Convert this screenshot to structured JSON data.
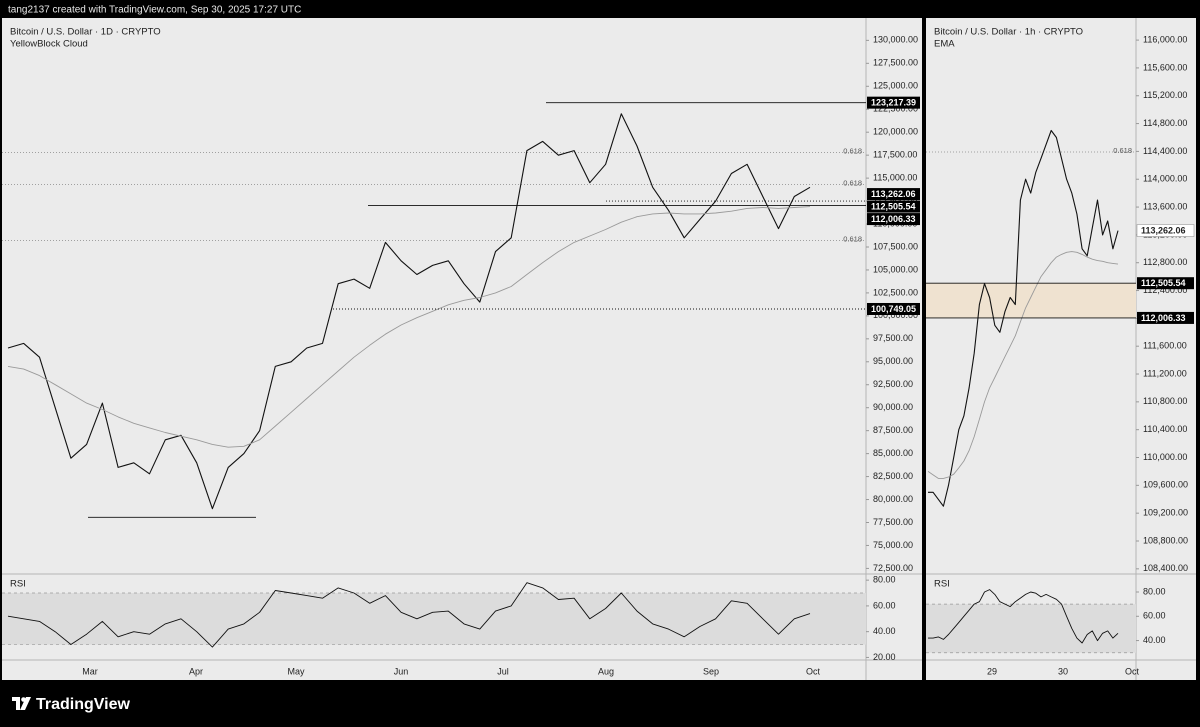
{
  "header": {
    "text": "tang2137 created with TradingView.com, Sep 30, 2025 17:27 UTC"
  },
  "footer": {
    "brand": "TradingView"
  },
  "chart_data": [
    {
      "type": "line",
      "title": "Bitcoin / U.S. Dollar · 1D · CRYPTO",
      "subtitle": "YellowBlock Cloud",
      "xtick_labels": [
        "Mar",
        "Apr",
        "May",
        "Jun",
        "Jul",
        "Aug",
        "Sep",
        "Oct"
      ],
      "ylim": [
        72000,
        132000
      ],
      "yticks": [
        {
          "value": 72500,
          "label": "72,500.00"
        },
        {
          "value": 75000,
          "label": "75,000.00"
        },
        {
          "value": 77500,
          "label": "77,500.00"
        },
        {
          "value": 80000,
          "label": "80,000.00"
        },
        {
          "value": 82500,
          "label": "82,500.00"
        },
        {
          "value": 85000,
          "label": "85,000.00"
        },
        {
          "value": 87500,
          "label": "87,500.00"
        },
        {
          "value": 90000,
          "label": "90,000.00"
        },
        {
          "value": 92500,
          "label": "92,500.00"
        },
        {
          "value": 95000,
          "label": "95,000.00"
        },
        {
          "value": 97500,
          "label": "97,500.00"
        },
        {
          "value": 100000,
          "label": "100,000.00"
        },
        {
          "value": 102500,
          "label": "102,500.00"
        },
        {
          "value": 105000,
          "label": "105,000.00"
        },
        {
          "value": 107500,
          "label": "107,500.00"
        },
        {
          "value": 110000,
          "label": "110,000.00"
        },
        {
          "value": 112500,
          "label": "112,500.00"
        },
        {
          "value": 115000,
          "label": "115,000.00"
        },
        {
          "value": 117500,
          "label": "117,500.00"
        },
        {
          "value": 120000,
          "label": "120,000.00"
        },
        {
          "value": 122500,
          "label": "122,500.00"
        },
        {
          "value": 125000,
          "label": "125,000.00"
        },
        {
          "value": 127500,
          "label": "127,500.00"
        },
        {
          "value": 130000,
          "label": "130,000.00"
        }
      ],
      "series": [
        {
          "color": "#111111",
          "values": [
            96500,
            97000,
            95500,
            90000,
            84500,
            86000,
            90500,
            83500,
            84000,
            82800,
            86500,
            87000,
            84000,
            79000,
            83500,
            85000,
            87500,
            94500,
            95000,
            96500,
            97000,
            103500,
            104000,
            103000,
            108000,
            106000,
            104500,
            105500,
            106000,
            103500,
            101500,
            107000,
            108500,
            118000,
            119000,
            117500,
            118000,
            114500,
            116500,
            122000,
            118500,
            114000,
            111500,
            108500,
            110500,
            112500,
            115500,
            116500,
            113000,
            109500,
            113000,
            114000
          ]
        },
        {
          "color": "#9a9a9a",
          "values": [
            94500,
            94200,
            93500,
            92500,
            91500,
            90500,
            89800,
            89000,
            88300,
            87800,
            87300,
            86900,
            86500,
            86000,
            85700,
            85800,
            86500,
            88000,
            89500,
            91000,
            92500,
            94000,
            95500,
            96800,
            98000,
            99000,
            99800,
            100500,
            101200,
            101700,
            102000,
            102500,
            103200,
            104500,
            105800,
            107000,
            108000,
            108700,
            109400,
            110200,
            110800,
            111100,
            111200,
            111100,
            111100,
            111200,
            111400,
            111700,
            111800,
            111700,
            111800,
            111900
          ]
        }
      ],
      "levels": [
        {
          "value": 123217.39,
          "label": "123,217.39",
          "color": "#000000",
          "line": "solid"
        },
        {
          "value": 113262.06,
          "label": "113,262.06",
          "color": "#000000",
          "line": "none"
        },
        {
          "value": 112505.54,
          "label": "112,505.54",
          "color": "#000000",
          "line": "dotted"
        },
        {
          "value": 112006.33,
          "label": "112,006.33",
          "color": "#000000",
          "line": "solid"
        },
        {
          "value": 100749.05,
          "label": "100,749.05",
          "color": "#000000",
          "line": "dotted"
        },
        {
          "value": 78060,
          "line": "solid"
        }
      ],
      "fib_lines": [
        {
          "value": 117805,
          "label": "0.618"
        },
        {
          "value": 114320,
          "label": "0.618"
        },
        {
          "value": 108220,
          "label": "0.618"
        }
      ],
      "rsi": {
        "title": "RSI",
        "ylim": [
          18,
          84
        ],
        "band": [
          30,
          70
        ],
        "yticks": [
          {
            "value": 20,
            "label": "20.00"
          },
          {
            "value": 40,
            "label": "40.00"
          },
          {
            "value": 60,
            "label": "60.00"
          },
          {
            "value": 80,
            "label": "80.00"
          }
        ],
        "values": [
          52,
          50,
          48,
          40,
          30,
          38,
          48,
          36,
          40,
          38,
          46,
          50,
          40,
          28,
          42,
          46,
          55,
          72,
          70,
          68,
          66,
          74,
          70,
          62,
          68,
          55,
          50,
          55,
          56,
          46,
          42,
          56,
          60,
          78,
          74,
          65,
          66,
          50,
          58,
          70,
          56,
          46,
          42,
          36,
          44,
          50,
          64,
          62,
          50,
          38,
          50,
          54
        ]
      }
    },
    {
      "type": "line",
      "title": "Bitcoin / U.S. Dollar · 1h · CRYPTO",
      "subtitle": "EMA",
      "xtick_labels": [
        "29",
        "30",
        "Oct"
      ],
      "ylim": [
        108340,
        116260
      ],
      "yticks": [
        {
          "value": 108400,
          "label": "108,400.00"
        },
        {
          "value": 108800,
          "label": "108,800.00"
        },
        {
          "value": 109200,
          "label": "109,200.00"
        },
        {
          "value": 109600,
          "label": "109,600.00"
        },
        {
          "value": 110000,
          "label": "110,000.00"
        },
        {
          "value": 110400,
          "label": "110,400.00"
        },
        {
          "value": 110800,
          "label": "110,800.00"
        },
        {
          "value": 111200,
          "label": "111,200.00"
        },
        {
          "value": 111600,
          "label": "111,600.00"
        },
        {
          "value": 112000,
          "label": "112,000.00"
        },
        {
          "value": 112400,
          "label": "112,400.00"
        },
        {
          "value": 112800,
          "label": "112,800.00"
        },
        {
          "value": 113200,
          "label": "113,200.00"
        },
        {
          "value": 113600,
          "label": "113,600.00"
        },
        {
          "value": 114000,
          "label": "114,000.00"
        },
        {
          "value": 114400,
          "label": "114,400.00"
        },
        {
          "value": 114800,
          "label": "114,800.00"
        },
        {
          "value": 115200,
          "label": "115,200.00"
        },
        {
          "value": 115600,
          "label": "115,600.00"
        },
        {
          "value": 116000,
          "label": "116,000.00"
        }
      ],
      "series": [
        {
          "color": "#111111",
          "values": [
            109500,
            109500,
            109400,
            109300,
            109600,
            110000,
            110400,
            110600,
            111000,
            111500,
            112200,
            112500,
            112300,
            111900,
            111800,
            112100,
            112300,
            112200,
            113700,
            114000,
            113800,
            114100,
            114300,
            114500,
            114700,
            114600,
            114300,
            114000,
            113800,
            113500,
            113000,
            112900,
            113300,
            113700,
            113200,
            113400,
            113000,
            113262
          ]
        },
        {
          "color": "#9a9a9a",
          "values": [
            109800,
            109750,
            109700,
            109700,
            109720,
            109760,
            109850,
            109950,
            110100,
            110300,
            110550,
            110800,
            111000,
            111150,
            111300,
            111450,
            111600,
            111750,
            111950,
            112150,
            112300,
            112450,
            112600,
            112700,
            112800,
            112880,
            112920,
            112950,
            112960,
            112950,
            112920,
            112880,
            112850,
            112830,
            112820,
            112800,
            112790,
            112780
          ]
        }
      ],
      "levels": [
        {
          "value": 113262.06,
          "label": "113,262.06",
          "color": "#ffffff",
          "line": "none"
        },
        {
          "value": 112505.54,
          "label": "112,505.54",
          "color": "#000000",
          "line": "solid"
        },
        {
          "value": 112006.33,
          "label": "112,006.33",
          "color": "#000000",
          "line": "solid"
        }
      ],
      "fib_lines": [
        {
          "value": 114391,
          "label": "0.618"
        }
      ],
      "rsi": {
        "title": "RSI",
        "ylim": [
          24,
          94
        ],
        "band": [
          30,
          70
        ],
        "yticks": [
          {
            "value": 40,
            "label": "40.00"
          },
          {
            "value": 60,
            "label": "60.00"
          },
          {
            "value": 80,
            "label": "80.00"
          }
        ],
        "values": [
          42,
          42,
          43,
          41,
          45,
          50,
          55,
          60,
          65,
          70,
          72,
          80,
          82,
          78,
          72,
          70,
          68,
          72,
          75,
          78,
          80,
          79,
          76,
          78,
          76,
          74,
          70,
          60,
          50,
          42,
          38,
          45,
          48,
          40,
          46,
          48,
          42,
          46
        ]
      }
    }
  ]
}
